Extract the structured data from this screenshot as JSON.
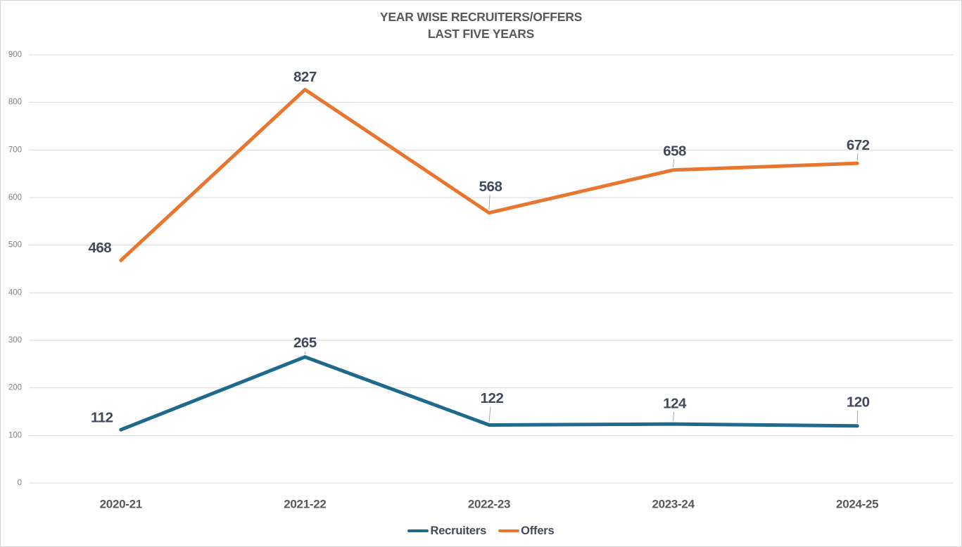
{
  "chart_data": {
    "type": "line",
    "title": "YEAR WISE RECRUITERS/OFFERS",
    "subtitle": "LAST FIVE YEARS",
    "categories": [
      "2020-21",
      "2021-22",
      "2022-23",
      "2023-24",
      "2024-25"
    ],
    "series": [
      {
        "name": "Recruiters",
        "color": "#1F6A8C",
        "values": [
          112,
          265,
          122,
          124,
          120
        ],
        "label_offsets": [
          {
            "dx": -27,
            "dy": -17,
            "leader": false
          },
          {
            "dx": 0,
            "dy": -20,
            "leader": true
          },
          {
            "dx": 4,
            "dy": -38,
            "leader": true
          },
          {
            "dx": 2,
            "dy": -29,
            "leader": true
          },
          {
            "dx": 1,
            "dy": -34,
            "leader": true
          }
        ]
      },
      {
        "name": "Offers",
        "color": "#E8762F",
        "values": [
          468,
          827,
          568,
          658,
          672
        ],
        "label_offsets": [
          {
            "dx": -30,
            "dy": -18,
            "leader": false
          },
          {
            "dx": 0,
            "dy": -18,
            "leader": false
          },
          {
            "dx": 2,
            "dy": -37,
            "leader": true
          },
          {
            "dx": 2,
            "dy": -27,
            "leader": true
          },
          {
            "dx": 1,
            "dy": -26,
            "leader": true
          }
        ]
      }
    ],
    "ylim": [
      0,
      900
    ],
    "ytick_step": 100,
    "yticks": [
      0,
      100,
      200,
      300,
      400,
      500,
      600,
      700,
      800,
      900
    ],
    "grid": true,
    "legend_position": "bottom"
  },
  "colors": {
    "grid": "#d9d9d9",
    "tick_label": "#7f7f7f",
    "axis_label": "#595959",
    "data_label": "#42495B",
    "leader": "#a6a6a6",
    "border": "#d4d4d4"
  }
}
